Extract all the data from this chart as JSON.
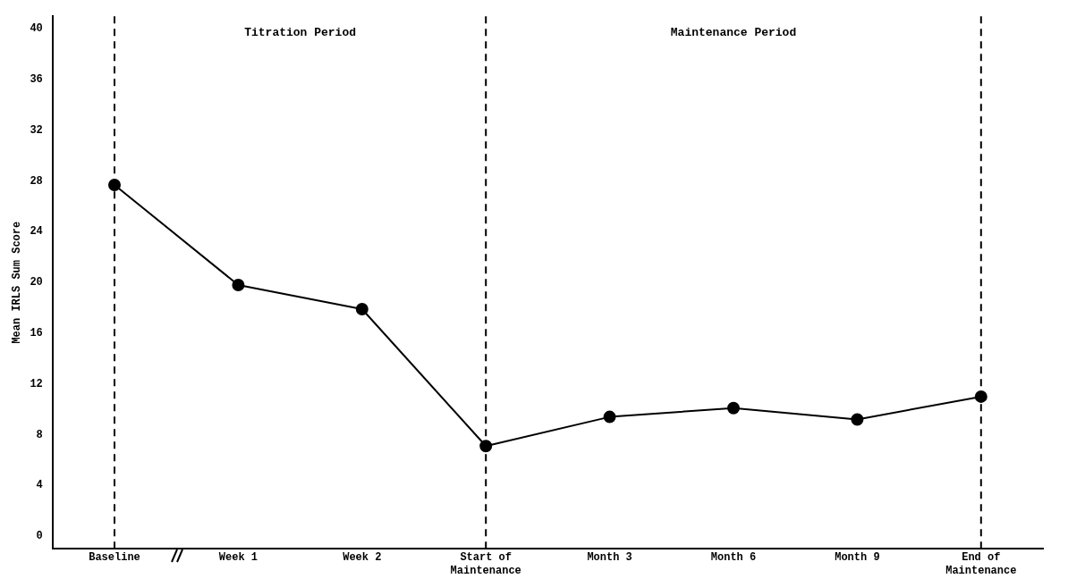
{
  "chart_data": {
    "type": "line",
    "ylabel": "Mean IRLS Sum Score",
    "categories": [
      "Baseline",
      "Week 1",
      "Week 2",
      "Start of Maintenance",
      "Month 3",
      "Month 6",
      "Month 9",
      "End of Maintenance"
    ],
    "series": [
      {
        "color": "#000000",
        "values": [
          27.7,
          19.8,
          17.9,
          7.1,
          9.4,
          10.1,
          9.2,
          11.0
        ]
      }
    ],
    "ylim": [
      -1,
      41
    ],
    "yticks": [
      0,
      4,
      8,
      12,
      16,
      20,
      24,
      28,
      32,
      36,
      40
    ],
    "marker": "circle",
    "line_style": "solid",
    "grid": false,
    "legend": false,
    "ref_lines": [
      {
        "axis": "x",
        "value": "Baseline",
        "line_style": "dashed",
        "color": "#000000"
      },
      {
        "axis": "x",
        "value": "Start of Maintenance",
        "line_style": "dashed",
        "color": "#000000"
      },
      {
        "axis": "x",
        "value": "End of Maintenance",
        "line_style": "dashed",
        "color": "#000000"
      }
    ],
    "annotations": [
      "Titration Period",
      "Maintenance Period"
    ]
  }
}
